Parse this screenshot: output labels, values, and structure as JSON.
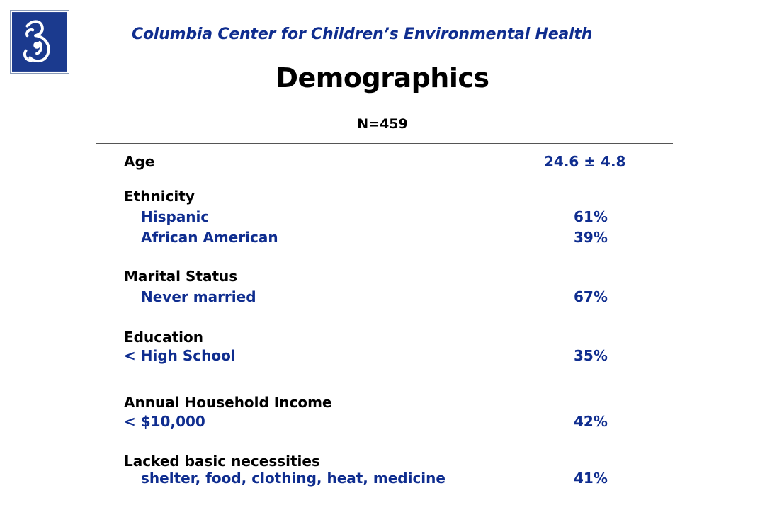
{
  "header": {
    "org_title": "Columbia Center for Children’s Environmental Health",
    "logo_icon": "mother-child-logo-icon"
  },
  "page": {
    "title": "Demographics",
    "sample_size": "N=459"
  },
  "colors": {
    "accent_blue": "#0f2d8f",
    "logo_blue": "#1b3a8e",
    "text": "#000000"
  },
  "table": {
    "age": {
      "label": "Age",
      "value": "24.6 ± 4.8"
    },
    "ethnicity": {
      "label": "Ethnicity",
      "rows": [
        {
          "label": "Hispanic",
          "value": "61%"
        },
        {
          "label": "African American",
          "value": "39%"
        }
      ]
    },
    "marital": {
      "label": "Marital Status",
      "rows": [
        {
          "label": "Never married",
          "value": "67%"
        }
      ]
    },
    "education": {
      "label": "Education",
      "rows": [
        {
          "label": "< High School",
          "value": "35%"
        }
      ]
    },
    "income": {
      "label": "Annual Household Income",
      "rows": [
        {
          "label": "< $10,000",
          "value": "42%"
        }
      ]
    },
    "necessities": {
      "label": "Lacked basic necessities",
      "rows": [
        {
          "label": "shelter, food, clothing, heat, medicine",
          "value": "41%"
        }
      ]
    }
  }
}
